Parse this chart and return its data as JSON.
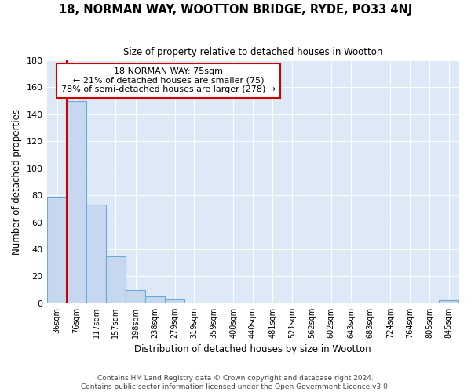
{
  "title": "18, NORMAN WAY, WOOTTON BRIDGE, RYDE, PO33 4NJ",
  "subtitle": "Size of property relative to detached houses in Wootton",
  "xlabel": "Distribution of detached houses by size in Wootton",
  "ylabel": "Number of detached properties",
  "bins": [
    36,
    76,
    117,
    157,
    198,
    238,
    279,
    319,
    359,
    400,
    440,
    481,
    521,
    562,
    602,
    643,
    683,
    724,
    764,
    805,
    845
  ],
  "counts": [
    79,
    150,
    73,
    35,
    10,
    5,
    3,
    0,
    0,
    0,
    0,
    0,
    0,
    0,
    0,
    0,
    0,
    0,
    0,
    0,
    2
  ],
  "bar_color": "#c5d8f0",
  "bar_edge_color": "#6aaad4",
  "background_color": "#dde9f7",
  "figure_color": "#ffffff",
  "grid_color": "#ffffff",
  "vline_x": 76,
  "vline_color": "#cc0000",
  "annotation_line1": "18 NORMAN WAY: 75sqm",
  "annotation_line2": "← 21% of detached houses are smaller (75)",
  "annotation_line3": "78% of semi-detached houses are larger (278) →",
  "annotation_box_color": "#ffffff",
  "annotation_box_edge_color": "#cc0000",
  "footnote": "Contains HM Land Registry data © Crown copyright and database right 2024.\nContains public sector information licensed under the Open Government Licence v3.0.",
  "ylim": [
    0,
    180
  ],
  "yticks": [
    0,
    20,
    40,
    60,
    80,
    100,
    120,
    140,
    160,
    180
  ],
  "bin_width": 41
}
